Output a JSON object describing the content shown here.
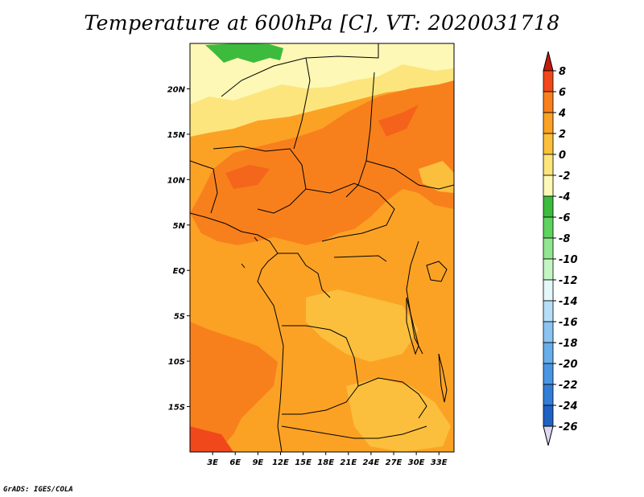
{
  "title": "Temperature at 600hPa [C], VT: 2020031718",
  "credit": "GrADS: IGES/COLA",
  "map": {
    "lon_labels": [
      "3E",
      "6E",
      "9E",
      "12E",
      "15E",
      "18E",
      "21E",
      "24E",
      "27E",
      "30E",
      "33E"
    ],
    "lat_labels": [
      "20N",
      "15N",
      "10N",
      "5N",
      "EQ",
      "5S",
      "10S",
      "15S"
    ],
    "lon_range": [
      0,
      35
    ],
    "lat_range": [
      -20,
      25
    ]
  },
  "colorbar": {
    "labels": [
      "8",
      "6",
      "4",
      "2",
      "0",
      "-2",
      "-4",
      "-6",
      "-8",
      "-10",
      "-12",
      "-14",
      "-16",
      "-18",
      "-20",
      "-22",
      "-24",
      "-26"
    ],
    "colors": [
      "#e3200e",
      "#f0481b",
      "#f8801c",
      "#fba225",
      "#fbbf3d",
      "#fde57d",
      "#fdf8b5",
      "#3dbb3d",
      "#5fd35f",
      "#92e692",
      "#c5f5c5",
      "#e4f7f9",
      "#b7def7",
      "#8cc4f1",
      "#68aeeb",
      "#4b96e4",
      "#327ed7",
      "#1f62c4",
      "#11408f",
      "#0b186c"
    ],
    "min_arrow_color": "#dcd8f4",
    "max_arrow_color": "#c41a0b"
  },
  "legend_colors": {
    "warm_max": "#f0481b",
    "warm": "#f8801c",
    "mid": "#fba225",
    "cool": "#fbbf3d",
    "pale": "#fde57d",
    "palest": "#fdf8b5",
    "green": "#3dbb3d"
  }
}
